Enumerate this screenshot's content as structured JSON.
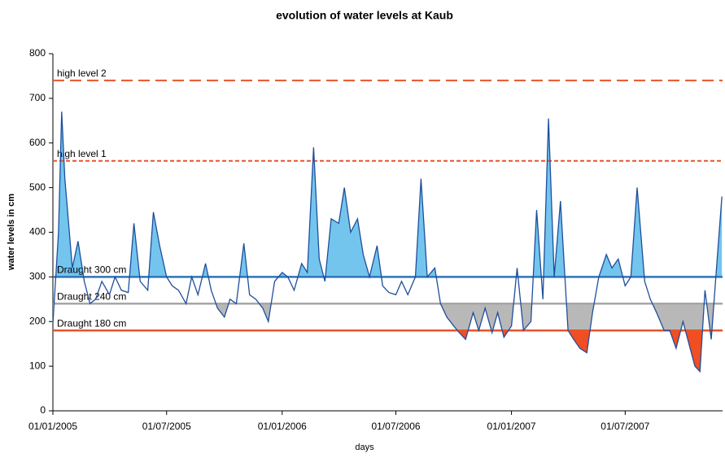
{
  "chart_data": {
    "type": "line",
    "title": "evolution of water levels at Kaub",
    "x_label": "days",
    "y_label": "water levels in cm",
    "x": [
      "01/01/2005",
      "10/01/2005",
      "15/01/2005",
      "20/01/2005",
      "01/02/2005",
      "10/02/2005",
      "20/02/2005",
      "01/03/2005",
      "10/03/2005",
      "20/03/2005",
      "01/04/2005",
      "10/04/2005",
      "20/04/2005",
      "01/05/2005",
      "10/05/2005",
      "20/05/2005",
      "01/06/2005",
      "10/06/2005",
      "20/06/2005",
      "01/07/2005",
      "10/07/2005",
      "20/07/2005",
      "01/08/2005",
      "10/08/2005",
      "20/08/2005",
      "01/09/2005",
      "10/09/2005",
      "20/09/2005",
      "01/10/2005",
      "10/10/2005",
      "20/10/2005",
      "01/11/2005",
      "10/11/2005",
      "20/11/2005",
      "01/12/2005",
      "10/12/2005",
      "20/12/2005",
      "01/01/2006",
      "10/01/2006",
      "20/01/2006",
      "01/02/2006",
      "10/02/2006",
      "20/02/2006",
      "01/03/2006",
      "10/03/2006",
      "20/03/2006",
      "01/04/2006",
      "10/04/2006",
      "20/04/2006",
      "01/05/2006",
      "10/05/2006",
      "20/05/2006",
      "01/06/2006",
      "10/06/2006",
      "20/06/2006",
      "01/07/2006",
      "10/07/2006",
      "20/07/2006",
      "01/08/2006",
      "10/08/2006",
      "20/08/2006",
      "01/09/2006",
      "10/09/2006",
      "20/09/2006",
      "01/10/2006",
      "10/10/2006",
      "20/10/2006",
      "01/11/2006",
      "10/11/2006",
      "20/11/2006",
      "01/12/2006",
      "10/12/2006",
      "20/12/2006",
      "01/01/2007",
      "10/01/2007",
      "20/01/2007",
      "01/02/2007",
      "10/02/2007",
      "20/02/2007",
      "01/03/2007",
      "10/03/2007",
      "20/03/2007",
      "01/04/2007",
      "10/04/2007",
      "20/04/2007",
      "01/05/2007",
      "10/05/2007",
      "20/05/2007",
      "01/06/2007",
      "10/06/2007",
      "20/06/2007",
      "01/07/2007",
      "10/07/2007",
      "20/07/2007",
      "01/08/2007",
      "10/08/2007",
      "20/08/2007",
      "01/09/2007",
      "10/09/2007",
      "20/09/2007",
      "01/10/2007",
      "20/10/2007",
      "28/10/2007",
      "05/11/2007",
      "15/11/2007",
      "25/11/2007",
      "02/12/2007"
    ],
    "series": [
      {
        "name": "water level",
        "color": "#1f4e9c",
        "values": [
          195,
          400,
          670,
          520,
          320,
          380,
          290,
          240,
          250,
          290,
          260,
          300,
          270,
          265,
          420,
          290,
          270,
          445,
          370,
          300,
          280,
          270,
          240,
          300,
          260,
          330,
          270,
          230,
          210,
          250,
          240,
          375,
          260,
          250,
          230,
          200,
          290,
          310,
          300,
          270,
          330,
          310,
          590,
          340,
          290,
          430,
          420,
          500,
          400,
          430,
          350,
          300,
          370,
          280,
          265,
          260,
          290,
          260,
          300,
          520,
          300,
          320,
          240,
          210,
          190,
          175,
          160,
          220,
          180,
          230,
          175,
          220,
          165,
          190,
          320,
          180,
          200,
          450,
          250,
          655,
          300,
          470,
          180,
          160,
          140,
          130,
          220,
          300,
          350,
          320,
          340,
          280,
          300,
          500,
          290,
          250,
          220,
          180,
          180,
          140,
          200,
          100,
          88,
          270,
          160,
          350,
          480
        ]
      }
    ],
    "xlim": [
      "01/01/2005",
      "03/12/2007"
    ],
    "xticks": [
      "01/01/2005",
      "01/07/2005",
      "01/01/2006",
      "01/07/2006",
      "01/01/2007",
      "01/07/2007"
    ],
    "ylim": [
      0,
      800
    ],
    "yticks": [
      0,
      100,
      200,
      300,
      400,
      500,
      600,
      700,
      800
    ],
    "grid": false,
    "reference_lines": [
      {
        "value": 740,
        "label": "high level 2",
        "color": "#e8542b",
        "dash": "long"
      },
      {
        "value": 560,
        "label": "high level 1",
        "color": "#e8542b",
        "dash": "short"
      },
      {
        "value": 300,
        "label": "Draught 300 cm",
        "color": "#2e75b6",
        "dash": "solid",
        "fill": {
          "side": "above",
          "color": "#73c5ee"
        }
      },
      {
        "value": 240,
        "label": "Draught 240 cm",
        "color": "#a6a6a6",
        "dash": "solid",
        "fill": {
          "side": "below",
          "color": "#b8b8b8"
        }
      },
      {
        "value": 180,
        "label": "Draught 180 cm",
        "color": "#e8542b",
        "dash": "solid",
        "fill": {
          "side": "below",
          "color": "#f04e23"
        }
      }
    ]
  }
}
